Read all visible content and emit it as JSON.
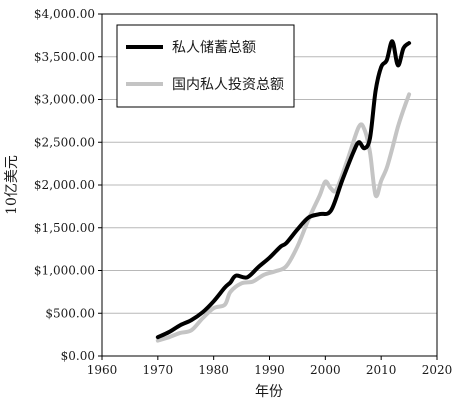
{
  "chart_data": {
    "type": "line",
    "title": "",
    "xlabel": "年份",
    "ylabel": "10亿美元",
    "xlim": [
      1960,
      2020
    ],
    "ylim": [
      0,
      4000
    ],
    "grid": true,
    "legend_position": "top-left",
    "x_ticks": [
      "1960",
      "1970",
      "1980",
      "1990",
      "2000",
      "2010",
      "2020"
    ],
    "y_ticks": [
      "$0.00",
      "$500.00",
      "$1,000.00",
      "$1,500.00",
      "$2,000.00",
      "$2,500.00",
      "$3,000.00",
      "$3,500.00",
      "$4,000.00"
    ],
    "x_tick_values": [
      1960,
      1970,
      1980,
      1990,
      2000,
      2010,
      2020
    ],
    "y_tick_values": [
      0,
      500,
      1000,
      1500,
      2000,
      2500,
      3000,
      3500,
      4000
    ],
    "series": [
      {
        "name": "私人储蓄总额",
        "color": "#000000",
        "x": [
          1970,
          1972,
          1974,
          1976,
          1978,
          1980,
          1982,
          1983,
          1984,
          1986,
          1988,
          1990,
          1992,
          1993,
          1995,
          1997,
          1999,
          2001,
          2003,
          2005,
          2006,
          2007,
          2008,
          2009,
          2010,
          2011,
          2012,
          2013,
          2014,
          2015
        ],
        "values": [
          220,
          280,
          360,
          420,
          510,
          640,
          800,
          860,
          940,
          920,
          1040,
          1150,
          1280,
          1320,
          1480,
          1620,
          1660,
          1700,
          2050,
          2380,
          2500,
          2430,
          2550,
          3100,
          3380,
          3460,
          3680,
          3400,
          3600,
          3660
        ]
      },
      {
        "name": "国内私人投资总额",
        "color": "#c4c4c4",
        "x": [
          1970,
          1972,
          1974,
          1976,
          1978,
          1980,
          1982,
          1983,
          1985,
          1987,
          1989,
          1991,
          1993,
          1995,
          1997,
          1999,
          2000,
          2001,
          2002,
          2004,
          2006,
          2007,
          2008,
          2009,
          2010,
          2011,
          2012,
          2013,
          2014,
          2015
        ],
        "values": [
          180,
          220,
          270,
          300,
          440,
          560,
          600,
          750,
          850,
          870,
          950,
          990,
          1050,
          1280,
          1600,
          1880,
          2040,
          1960,
          1950,
          2300,
          2680,
          2650,
          2380,
          1880,
          2050,
          2200,
          2430,
          2680,
          2880,
          3060
        ]
      }
    ]
  }
}
